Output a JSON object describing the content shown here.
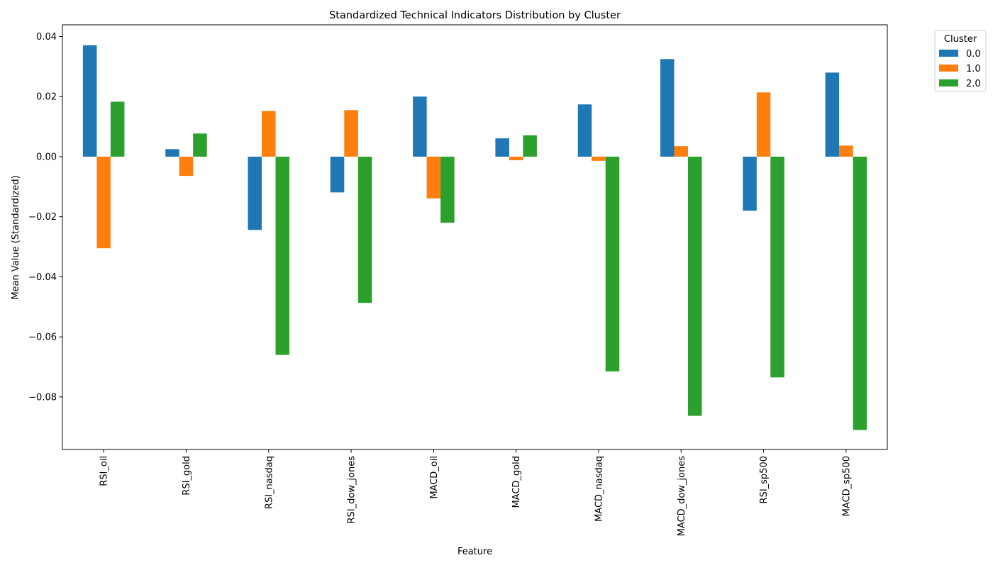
{
  "chart_data": {
    "type": "bar",
    "title": "Standardized Technical Indicators Distribution by Cluster",
    "xlabel": "Feature",
    "ylabel": "Mean Value (Standardized)",
    "categories": [
      "RSI_oil",
      "RSI_gold",
      "RSI_nasdaq",
      "RSI_dow_jones",
      "MACD_oil",
      "MACD_gold",
      "MACD_nasdaq",
      "MACD_dow_jones",
      "RSI_sp500",
      "MACD_sp500"
    ],
    "ylim": [
      -0.0975,
      0.0439
    ],
    "yticks": [
      -0.08,
      -0.06,
      -0.04,
      -0.02,
      0.0,
      0.02,
      0.04
    ],
    "ytick_labels": [
      "−0.08",
      "−0.06",
      "−0.04",
      "−0.02",
      "0.00",
      "0.02",
      "0.04"
    ],
    "grid": false,
    "legend": {
      "title": "Cluster",
      "placement": "outside top-right"
    },
    "series": [
      {
        "name": "0.0",
        "color": "#1f77b4",
        "values": [
          0.0371,
          0.0025,
          -0.0244,
          -0.0119,
          0.02,
          0.0061,
          0.0174,
          0.0325,
          -0.018,
          0.028
        ]
      },
      {
        "name": "1.0",
        "color": "#ff7f0e",
        "values": [
          -0.0305,
          -0.0064,
          0.0152,
          0.0155,
          -0.0139,
          -0.0012,
          -0.0014,
          0.0035,
          0.0214,
          0.0037
        ]
      },
      {
        "name": "2.0",
        "color": "#2ca02c",
        "values": [
          0.0183,
          0.0077,
          -0.066,
          -0.0487,
          -0.022,
          0.0071,
          -0.0715,
          -0.0863,
          -0.0735,
          -0.091
        ]
      }
    ]
  }
}
